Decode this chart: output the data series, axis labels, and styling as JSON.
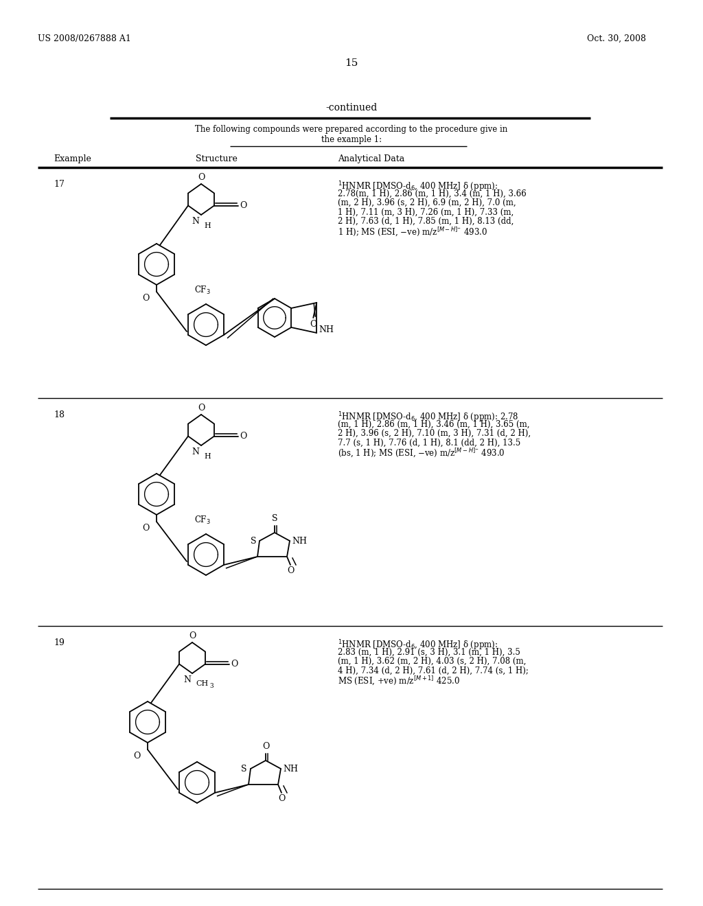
{
  "background_color": "#ffffff",
  "page_number": "15",
  "header_left": "US 2008/0267888 A1",
  "header_right": "Oct. 30, 2008",
  "continued_text": "-continued",
  "table_note_line1": "The following compounds were prepared according to the procedure give in",
  "table_note_line2": "the example 1:",
  "col_example": "Example",
  "col_structure": "Structure",
  "col_data": "Analytical Data",
  "ex17_num": "17",
  "ex18_num": "18",
  "ex19_num": "19",
  "nmr17_lines": [
    "¹HNMR [DMSO-d₆, 400 MHz] δ (ppm):",
    "2.78(m, 1 H), 2.86 (m, 1 H), 3.4 (m, 1 H), 3.66",
    "(m, 2 H), 3.96 (s, 2 H), 6.9 (m, 2 H), 7.0 (m,",
    "1 H), 7.11 (m, 3 H), 7.26 (m, 1 H), 7.33 (m,",
    "2 H), 7.63 (d, 1 H), 7.85 (m, 1 H), 8.13 (dd,",
    "1 H); MS (ESI, −ve) m/z[M−H]⁻ 493.0"
  ],
  "nmr18_lines": [
    "¹HNMR [DMSO-d₆, 400 MHz] δ (ppm): 2.78",
    "(m, 1 H), 2.86 (m, 1 H), 3.46 (m, 1 H), 3.65 (m,",
    "2 H), 3.96 (s, 2 H), 7.10 (m, 3 H), 7.31 (d, 2 H),",
    "7.7 (s, 1 H), 7.76 (d, 1 H), 8.1 (dd, 2 H), 13.5",
    "(bs, 1 H); MS (ESI, −ve) m/z[M−H]⁻ 493.0"
  ],
  "nmr19_lines": [
    "¹HNMR [DMSO-d₆, 400 MHz] δ (ppm):",
    "2.83 (m, 1 H), 2.91 (s, 3 H), 3.1 (m, 1 H), 3.5",
    "(m, 1 H), 3.62 (m, 2 H), 4.03 (s, 2 H), 7.08 (m,",
    "4 H), 7.34 (d, 2 H), 7.61 (d, 2 H), 7.74 (s, 1 H);",
    "MS (ESI, +ve) m/z[M+1] 425.0"
  ],
  "line_color": "#000000",
  "text_color": "#000000"
}
